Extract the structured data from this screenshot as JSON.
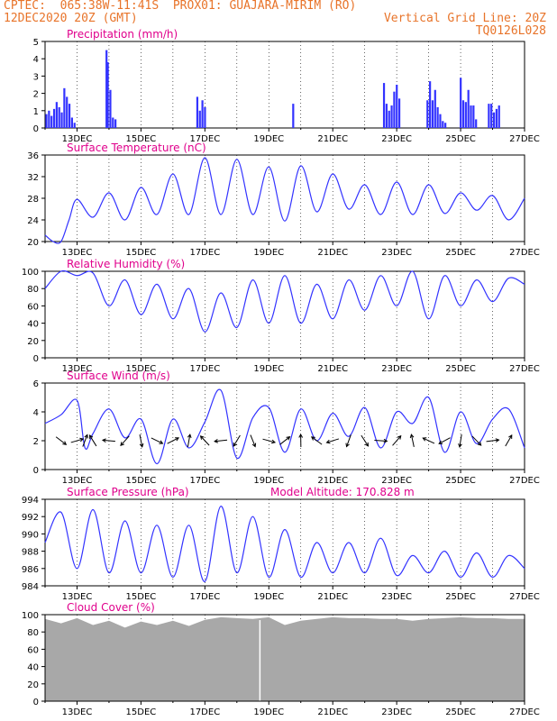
{
  "header": {
    "line1_left": "CPTEC:  065:38W-11:41S  PROX01: GUAJARA-MIRIM (RO)",
    "line2_left": "12DEC2020 20Z (GMT)",
    "line2_right": "Vertical Grid Line: 20Z",
    "line3_right": "TQ0126L028"
  },
  "colors": {
    "header": "#e8742a",
    "title": "#e0008c",
    "bar": "#3333ff",
    "line": "#3333ff",
    "arrow": "#000000",
    "cloud": "#a8a8a8"
  },
  "x_axis": {
    "ticks": [
      "13DEC",
      "15DEC",
      "17DEC",
      "19DEC",
      "21DEC",
      "23DEC",
      "25DEC",
      "27DEC"
    ],
    "range_days": [
      0,
      15
    ]
  },
  "chart_data": [
    {
      "type": "bar",
      "title": "Precipitation (mm/h)",
      "ylim": [
        0,
        5
      ],
      "yticks": [
        0,
        1,
        2,
        3,
        4,
        5
      ],
      "x": [
        0.04,
        0.12,
        0.2,
        0.28,
        0.36,
        0.44,
        0.52,
        0.6,
        0.68,
        0.76,
        0.84,
        0.92,
        1.92,
        1.96,
        2.04,
        2.12,
        2.2,
        4.76,
        4.84,
        4.92,
        5.0,
        7.76,
        10.6,
        10.68,
        10.76,
        10.84,
        10.92,
        11.0,
        11.08,
        11.96,
        12.04,
        12.12,
        12.2,
        12.28,
        12.36,
        12.44,
        12.52,
        13.0,
        13.08,
        13.16,
        13.24,
        13.32,
        13.4,
        13.48,
        13.88,
        13.96,
        14.04,
        14.12,
        14.2
      ],
      "values": [
        0.8,
        1.0,
        0.7,
        1.1,
        1.5,
        1.2,
        0.9,
        2.3,
        1.8,
        1.4,
        0.6,
        0.3,
        4.5,
        3.8,
        2.2,
        0.6,
        0.5,
        1.8,
        1.0,
        1.6,
        1.2,
        1.4,
        2.6,
        1.4,
        1.0,
        1.3,
        2.1,
        2.5,
        1.7,
        1.6,
        2.7,
        1.6,
        2.2,
        1.2,
        0.8,
        0.4,
        0.3,
        2.9,
        1.6,
        1.5,
        2.2,
        1.3,
        1.3,
        0.5,
        1.4,
        1.4,
        0.9,
        1.1,
        1.3
      ]
    },
    {
      "type": "line",
      "title": "Surface Temperature (nC)",
      "ylim": [
        20,
        36
      ],
      "yticks": [
        20,
        24,
        28,
        32,
        36
      ],
      "x": [
        0,
        0.25,
        0.5,
        0.75,
        1,
        1.5,
        2,
        2.5,
        3,
        3.5,
        4,
        4.5,
        5,
        5.5,
        6,
        6.5,
        7,
        7.5,
        8,
        8.5,
        9,
        9.5,
        10,
        10.5,
        11,
        11.5,
        12,
        12.5,
        13,
        13.5,
        14,
        14.5,
        15
      ],
      "values": [
        21.2,
        20.0,
        20.0,
        24.0,
        27.8,
        24.5,
        29.0,
        24.0,
        30.0,
        25.0,
        32.5,
        25.0,
        35.5,
        25.0,
        35.2,
        25.0,
        33.8,
        23.8,
        34.0,
        25.5,
        32.5,
        26.0,
        30.5,
        25.0,
        31.0,
        25.0,
        30.5,
        25.2,
        29.0,
        25.8,
        28.5,
        24.0,
        28.0
      ]
    },
    {
      "type": "line",
      "title": "Relative Humidity (%)",
      "ylim": [
        0,
        100
      ],
      "yticks": [
        0,
        20,
        40,
        60,
        80,
        100
      ],
      "x": [
        0,
        0.5,
        1,
        1.5,
        2,
        2.5,
        3,
        3.5,
        4,
        4.5,
        5,
        5.5,
        6,
        6.5,
        7,
        7.5,
        8,
        8.5,
        9,
        9.5,
        10,
        10.5,
        11,
        11.5,
        12,
        12.5,
        13,
        13.5,
        14,
        14.5,
        15
      ],
      "values": [
        80,
        100,
        95,
        98,
        60,
        90,
        50,
        85,
        45,
        80,
        30,
        75,
        35,
        90,
        40,
        95,
        40,
        85,
        45,
        90,
        55,
        95,
        60,
        100,
        45,
        95,
        60,
        90,
        65,
        92,
        85
      ]
    },
    {
      "type": "line",
      "title": "Surface Wind (m/s)",
      "ylim": [
        0,
        6
      ],
      "yticks": [
        0,
        2,
        4,
        6
      ],
      "x": [
        0,
        0.5,
        1,
        1.25,
        1.5,
        2,
        2.5,
        3,
        3.5,
        4,
        4.5,
        5,
        5.5,
        6,
        6.5,
        7,
        7.5,
        8,
        8.5,
        9,
        9.5,
        10,
        10.5,
        11,
        11.5,
        12,
        12.5,
        13,
        13.5,
        14,
        14.5,
        15
      ],
      "values": [
        3.2,
        3.8,
        4.8,
        1.5,
        2.5,
        4.2,
        2.2,
        3.5,
        0.4,
        3.5,
        1.5,
        3.3,
        5.5,
        0.8,
        3.6,
        4.3,
        1.2,
        4.2,
        2.0,
        3.9,
        2.3,
        4.3,
        1.5,
        4.0,
        3.2,
        5.0,
        1.2,
        4.0,
        1.8,
        3.5,
        4.2,
        1.5
      ]
    },
    {
      "type": "line",
      "title": "Surface Pressure (hPa)",
      "subtitle": "Model Altitude: 170.828  m",
      "ylim": [
        984,
        994
      ],
      "yticks": [
        984,
        986,
        988,
        990,
        992,
        994
      ],
      "x": [
        0,
        0.5,
        1,
        1.5,
        2,
        2.5,
        3,
        3.5,
        4,
        4.5,
        5,
        5.5,
        6,
        6.5,
        7,
        7.5,
        8,
        8.5,
        9,
        9.5,
        10,
        10.5,
        11,
        11.5,
        12,
        12.5,
        13,
        13.5,
        14,
        14.5,
        15
      ],
      "values": [
        989.0,
        992.5,
        986.0,
        992.8,
        985.5,
        991.5,
        985.5,
        991.0,
        985.0,
        991.0,
        984.5,
        993.2,
        985.5,
        992.0,
        985.0,
        990.5,
        985.0,
        989.0,
        985.5,
        989.0,
        985.5,
        989.5,
        985.2,
        987.5,
        985.5,
        988.0,
        985.0,
        987.8,
        985.0,
        987.5,
        986.0
      ]
    },
    {
      "type": "area",
      "title": "Cloud Cover (%)",
      "ylim": [
        0,
        100
      ],
      "yticks": [
        0,
        20,
        40,
        60,
        80,
        100
      ],
      "x": [
        0,
        0.5,
        1,
        1.5,
        2,
        2.5,
        3,
        3.5,
        4,
        4.5,
        5,
        5.5,
        6,
        6.5,
        7,
        7.5,
        8,
        8.5,
        9,
        9.5,
        10,
        10.5,
        11,
        11.5,
        12,
        12.5,
        13,
        13.5,
        14,
        14.5,
        15
      ],
      "values": [
        95,
        90,
        96,
        88,
        93,
        85,
        92,
        88,
        93,
        87,
        94,
        97,
        96,
        95,
        97,
        88,
        93,
        95,
        97,
        96,
        96,
        95,
        95,
        93,
        95,
        96,
        97,
        96,
        96,
        95,
        95
      ]
    }
  ]
}
